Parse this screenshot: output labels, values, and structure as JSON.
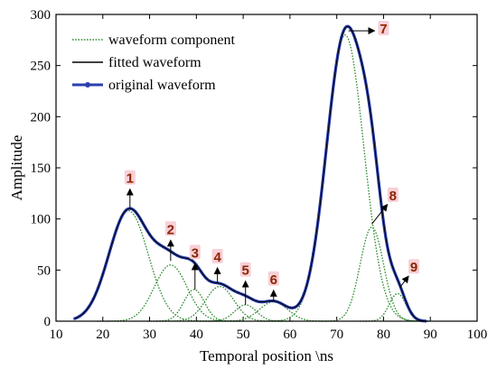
{
  "chart_data": {
    "type": "line",
    "xlabel": "Temporal position \\ns",
    "ylabel": "Amplitude",
    "xlim": [
      10,
      100
    ],
    "ylim": [
      0,
      300
    ],
    "xticks": [
      "10",
      "20",
      "30",
      "40",
      "50",
      "60",
      "70",
      "80",
      "90",
      "100"
    ],
    "yticks": [
      "0",
      "50",
      "100",
      "150",
      "200",
      "250",
      "300"
    ],
    "legend_position": "top-left",
    "legend": [
      "waveform component",
      "fitted waveform",
      "original waveform"
    ],
    "colors": {
      "component": "#2e8b2e",
      "fitted": "#000000",
      "original": "#2a3fb0",
      "peak_label": "#8b2500",
      "peak_label_bg": "#f6c8d0"
    },
    "components": [
      {
        "label": "1",
        "center": 25.5,
        "amplitude": 108,
        "sigma": 4.2
      },
      {
        "label": "2",
        "center": 34.5,
        "amplitude": 55,
        "sigma": 3.5
      },
      {
        "label": "3",
        "center": 39.5,
        "amplitude": 31,
        "sigma": 2.2
      },
      {
        "label": "4",
        "center": 45.0,
        "amplitude": 34,
        "sigma": 3.0
      },
      {
        "label": "5",
        "center": 50.5,
        "amplitude": 16,
        "sigma": 2.3
      },
      {
        "label": "6",
        "center": 56.5,
        "amplitude": 19,
        "sigma": 3.0
      },
      {
        "label": "7",
        "center": 71.8,
        "amplitude": 280,
        "sigma": 4.0
      },
      {
        "label": "8",
        "center": 77.5,
        "amplitude": 92,
        "sigma": 2.5
      },
      {
        "label": "9",
        "center": 83.0,
        "amplitude": 27,
        "sigma": 1.8
      }
    ],
    "annotations": [
      {
        "text": "1",
        "point": [
          25.8,
          110
        ],
        "label_at": [
          25.8,
          138
        ]
      },
      {
        "text": "2",
        "point": [
          34.5,
          59
        ],
        "label_at": [
          34.5,
          88
        ]
      },
      {
        "text": "3",
        "point": [
          39.7,
          31
        ],
        "label_at": [
          39.7,
          65
        ]
      },
      {
        "text": "4",
        "point": [
          44.5,
          38
        ],
        "label_at": [
          44.5,
          61
        ]
      },
      {
        "text": "5",
        "point": [
          50.5,
          16
        ],
        "label_at": [
          50.5,
          48
        ]
      },
      {
        "text": "6",
        "point": [
          56.5,
          19
        ],
        "label_at": [
          56.5,
          39
        ]
      },
      {
        "text": "7",
        "point": [
          72.5,
          284
        ],
        "label_at": [
          80.0,
          284
        ]
      },
      {
        "text": "8",
        "point": [
          77.5,
          95
        ],
        "label_at": [
          82.0,
          121
        ]
      },
      {
        "text": "9",
        "point": [
          83.5,
          33
        ],
        "label_at": [
          86.5,
          51
        ]
      }
    ]
  }
}
